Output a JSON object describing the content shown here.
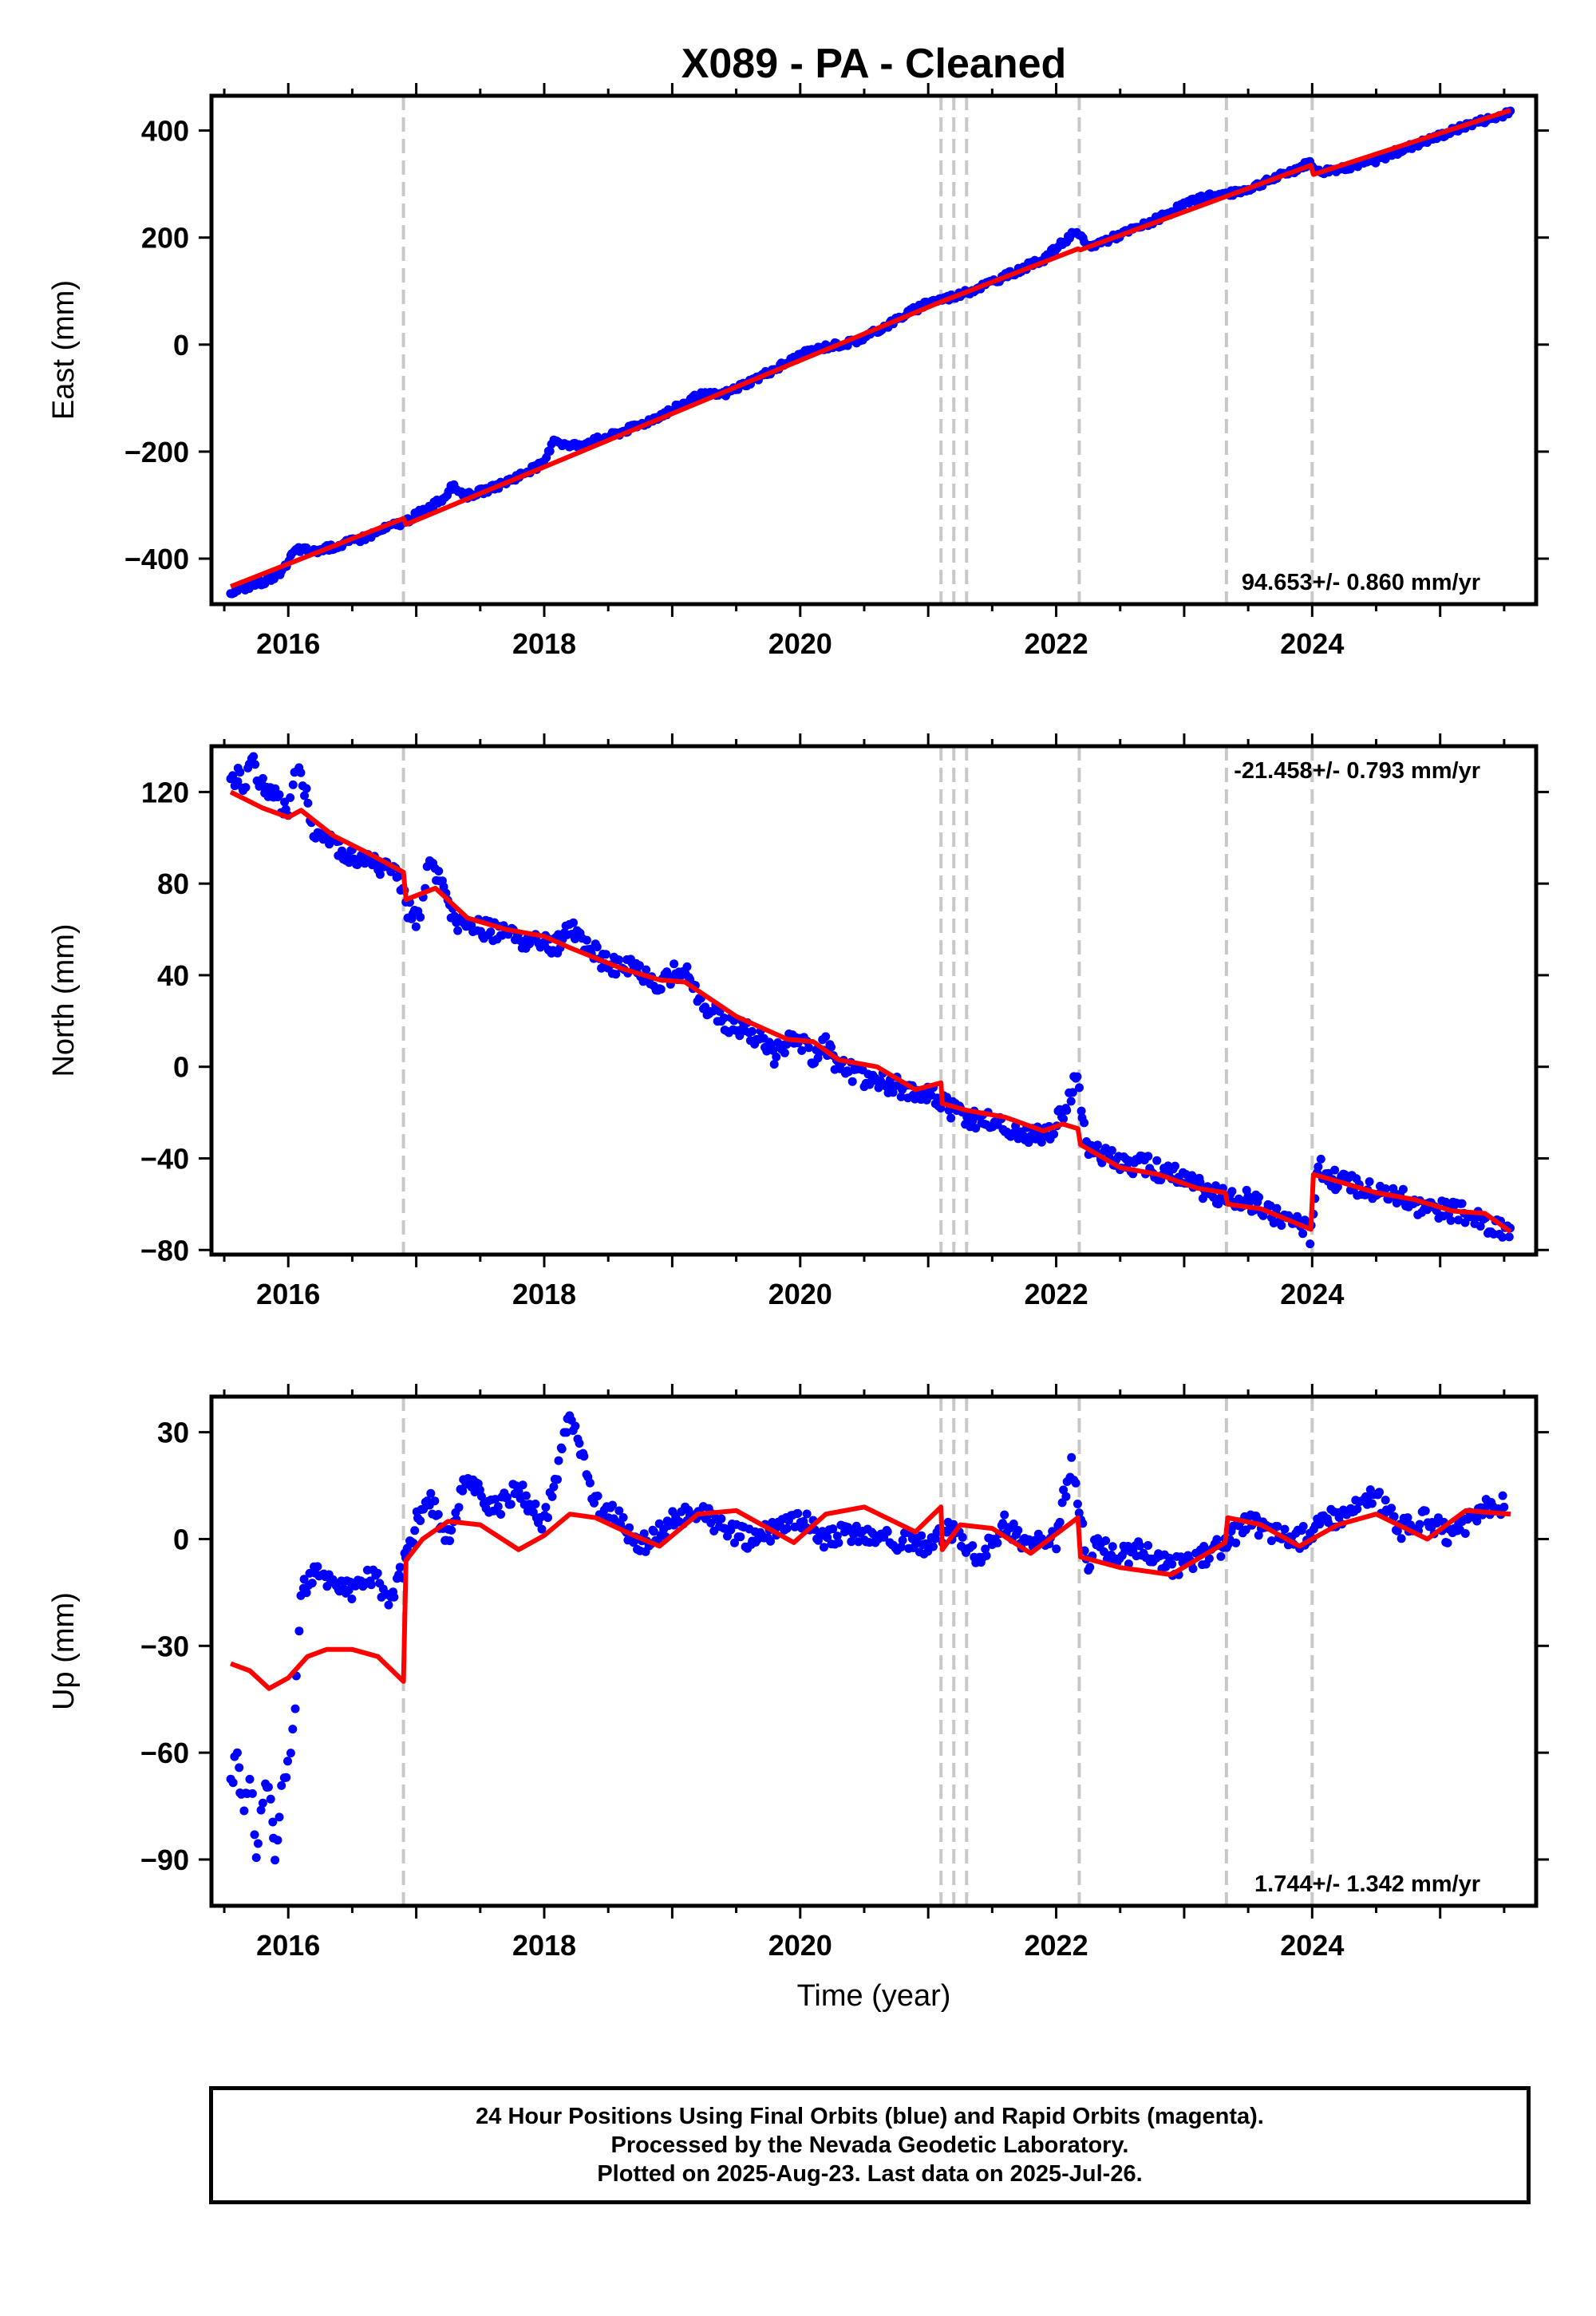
{
  "chart_data": {
    "type": "scatter",
    "title": "X089  - PA - Cleaned",
    "xlabel": "Time (year)",
    "xlim": [
      2015.4,
      2025.75
    ],
    "x_ticks": [
      2016,
      2018,
      2020,
      2022,
      2024
    ],
    "x_tick_labels": [
      "2016",
      "2018",
      "2020",
      "2022",
      "2024"
    ],
    "event_lines": [
      2016.9,
      2021.1,
      2021.2,
      2021.3,
      2022.18,
      2023.33,
      2024.0
    ],
    "event_line_color": "#c8c8c8",
    "point_color": "#0000ff",
    "model_color": "#ff0000",
    "panels": [
      {
        "id": "east",
        "ylabel": "East (mm)",
        "ylim": [
          -485,
          465
        ],
        "y_ticks": [
          -400,
          -200,
          0,
          200,
          400
        ],
        "y_tick_labels": [
          "−400",
          "−200",
          "0",
          "200",
          "400"
        ],
        "rate_label": "94.653+/- 0.860 mm/yr",
        "rate_position": "bottom-right",
        "series": [
          {
            "kind": "points",
            "x": [
              2015.55,
              2015.65,
              2015.75,
              2015.85,
              2015.95,
              2016.03,
              2016.08,
              2016.2,
              2016.4,
              2016.6,
              2016.8,
              2016.92,
              2017.0,
              2017.2,
              2017.28,
              2017.4,
              2017.6,
              2017.8,
              2018.0,
              2018.07,
              2018.18,
              2018.3,
              2018.5,
              2018.75,
              2019.0,
              2019.2,
              2019.4,
              2019.6,
              2019.8,
              2020.0,
              2020.2,
              2020.4,
              2020.5,
              2021.0,
              2021.15,
              2021.3,
              2021.5,
              2021.7,
              2021.9,
              2022.05,
              2022.15,
              2022.25,
              2022.5,
              2022.75,
              2023.0,
              2023.2,
              2023.4,
              2023.6,
              2023.8,
              2023.98,
              2024.05,
              2024.3,
              2024.5,
              2024.75,
              2025.0,
              2025.25,
              2025.45,
              2025.55
            ],
            "y": [
              -462,
              -455,
              -447,
              -440,
              -428,
              -392,
              -382,
              -387,
              -375,
              -360,
              -340,
              -330,
              -318,
              -290,
              -265,
              -282,
              -268,
              -245,
              -222,
              -175,
              -190,
              -185,
              -172,
              -150,
              -122,
              -95,
              -93,
              -70,
              -46,
              -20,
              -4,
              4,
              12,
              80,
              87,
              97,
              117,
              138,
              160,
              190,
              210,
              182,
              205,
              230,
              262,
              278,
              283,
              300,
              320,
              340,
              322,
              333,
              345,
              368,
              390,
              413,
              425,
              437
            ]
          },
          {
            "kind": "line",
            "x": [
              2015.55,
              2016.9,
              2016.92,
              2021.1,
              2022.17,
              2022.19,
              2023.99,
              2024.01,
              2025.55
            ],
            "y": [
              -452,
              -325,
              -336,
              80,
              179,
              177,
              335,
              318,
              438
            ]
          }
        ]
      },
      {
        "id": "north",
        "ylabel": "North (mm)",
        "ylim": [
          -82,
          140
        ],
        "y_ticks": [
          -80,
          -40,
          0,
          40,
          80,
          120
        ],
        "y_tick_labels": [
          "−80",
          "−40",
          "0",
          "40",
          "80",
          "120"
        ],
        "rate_label": "-21.458+/- 0.793 mm/yr",
        "rate_position": "top-right",
        "series": [
          {
            "kind": "points",
            "x": [
              2015.55,
              2015.6,
              2015.65,
              2015.7,
              2015.8,
              2015.9,
              2016.0,
              2016.05,
              2016.1,
              2016.2,
              2016.35,
              2016.5,
              2016.7,
              2016.85,
              2016.92,
              2017.0,
              2017.05,
              2017.1,
              2017.2,
              2017.3,
              2017.5,
              2017.7,
              2017.9,
              2018.1,
              2018.2,
              2018.3,
              2018.5,
              2018.7,
              2018.9,
              2019.0,
              2019.1,
              2019.2,
              2019.4,
              2019.6,
              2019.8,
              2019.95,
              2020.1,
              2020.2,
              2020.3,
              2020.45,
              2020.5,
              2021.0,
              2021.15,
              2021.3,
              2021.5,
              2021.7,
              2021.9,
              2022.0,
              2022.1,
              2022.15,
              2022.25,
              2022.5,
              2022.7,
              2022.9,
              2023.1,
              2023.3,
              2023.5,
              2023.7,
              2023.9,
              2023.98,
              2024.05,
              2024.2,
              2024.4,
              2024.6,
              2024.8,
              2025.0,
              2025.2,
              2025.4,
              2025.55
            ],
            "y": [
              125,
              128,
              122,
              135,
              122,
              118,
              112,
              128,
              130,
              103,
              98,
              92,
              88,
              84,
              70,
              65,
              72,
              90,
              78,
              63,
              60,
              58,
              54,
              53,
              62,
              55,
              44,
              43,
              36,
              41,
              44,
              29,
              20,
              16,
              5,
              14,
              4,
              10,
              -1,
              -3,
              -5,
              -12,
              -17,
              -23,
              -24,
              -30,
              -30,
              -25,
              -15,
              -3,
              -34,
              -43,
              -43,
              -47,
              -52,
              -57,
              -58,
              -65,
              -67,
              -73,
              -44,
              -50,
              -53,
              -55,
              -60,
              -62,
              -64,
              -70,
              -72
            ]
          },
          {
            "kind": "line",
            "x": [
              2015.55,
              2015.8,
              2016.0,
              2016.1,
              2016.35,
              2016.6,
              2016.9,
              2016.92,
              2017.15,
              2017.4,
              2017.7,
              2018.0,
              2018.2,
              2018.6,
              2018.9,
              2019.1,
              2019.5,
              2019.9,
              2020.1,
              2020.3,
              2020.6,
              2020.9,
              2021.1,
              2021.11,
              2021.3,
              2021.6,
              2021.9,
              2022.05,
              2022.17,
              2022.19,
              2022.5,
              2022.8,
              2023.1,
              2023.32,
              2023.34,
              2023.6,
              2023.99,
              2024.01,
              2024.2,
              2024.5,
              2024.8,
              2025.1,
              2025.35,
              2025.55
            ],
            "y": [
              120,
              113,
              109,
              112,
              101,
              94,
              85,
              73,
              78,
              65,
              60,
              57,
              52,
              43,
              38,
              37,
              22,
              12,
              11,
              3,
              0,
              -10,
              -7,
              -16,
              -19,
              -22,
              -28,
              -25,
              -27,
              -34,
              -44,
              -47,
              -53,
              -55,
              -60,
              -62,
              -71,
              -47,
              -50,
              -55,
              -58,
              -63,
              -64,
              -72
            ]
          }
        ]
      },
      {
        "id": "up",
        "ylabel": "Up (mm)",
        "ylim": [
          -103,
          40
        ],
        "y_ticks": [
          -90,
          -60,
          -30,
          0,
          30
        ],
        "y_tick_labels": [
          "−90",
          "−60",
          "−30",
          "0",
          "30"
        ],
        "rate_label": "1.744+/- 1.342 mm/yr",
        "rate_position": "bottom-right",
        "series": [
          {
            "kind": "points",
            "x": [
              2015.55,
              2015.6,
              2015.65,
              2015.7,
              2015.75,
              2015.8,
              2015.85,
              2015.9,
              2015.95,
              2016.0,
              2016.05,
              2016.1,
              2016.2,
              2016.35,
              2016.5,
              2016.65,
              2016.8,
              2016.92,
              2017.0,
              2017.1,
              2017.25,
              2017.4,
              2017.6,
              2017.8,
              2018.0,
              2018.2,
              2018.4,
              2018.6,
              2018.75,
              2019.0,
              2019.2,
              2019.4,
              2019.6,
              2019.8,
              2020.0,
              2020.2,
              2020.4,
              2020.5,
              2021.0,
              2021.2,
              2021.4,
              2021.6,
              2021.8,
              2022.0,
              2022.12,
              2022.25,
              2022.3,
              2022.5,
              2022.7,
              2022.9,
              2023.1,
              2023.3,
              2023.5,
              2023.7,
              2023.9,
              2024.1,
              2024.3,
              2024.5,
              2024.7,
              2024.9,
              2025.1,
              2025.3,
              2025.5
            ],
            "y": [
              -70,
              -60,
              -78,
              -66,
              -88,
              -72,
              -68,
              -92,
              -70,
              -62,
              -48,
              -15,
              -10,
              -12,
              -15,
              -10,
              -18,
              -5,
              5,
              12,
              0,
              18,
              8,
              14,
              4,
              35,
              10,
              5,
              -2,
              5,
              8,
              3,
              0,
              2,
              6,
              0,
              2,
              1,
              -2,
              3,
              -5,
              4,
              -2,
              0,
              22,
              -8,
              -2,
              -5,
              -3,
              -8,
              -6,
              -2,
              5,
              2,
              0,
              5,
              8,
              12,
              3,
              6,
              0,
              8,
              10
            ]
          },
          {
            "kind": "line",
            "x": [
              2015.55,
              2015.7,
              2015.85,
              2016.0,
              2016.15,
              2016.3,
              2016.5,
              2016.7,
              2016.9,
              2016.92,
              2017.05,
              2017.25,
              2017.5,
              2017.8,
              2018.0,
              2018.2,
              2018.4,
              2018.7,
              2018.9,
              2019.2,
              2019.5,
              2019.8,
              2019.95,
              2020.2,
              2020.5,
              2020.9,
              2021.1,
              2021.11,
              2021.25,
              2021.5,
              2021.8,
              2022.17,
              2022.19,
              2022.5,
              2022.9,
              2023.32,
              2023.34,
              2023.6,
              2023.9,
              2024.2,
              2024.5,
              2024.9,
              2025.2,
              2025.55
            ],
            "y": [
              -35,
              -37,
              -42,
              -39,
              -33,
              -31,
              -31,
              -33,
              -40,
              -6,
              0,
              5,
              4,
              -3,
              1,
              7,
              6,
              1,
              -2,
              7,
              8,
              2,
              -1,
              7,
              9,
              2,
              9,
              -3,
              4,
              3,
              -4,
              6,
              -5,
              -8,
              -10,
              -1,
              6,
              4,
              -2,
              4,
              7,
              0,
              8,
              7
            ]
          }
        ]
      }
    ]
  },
  "footer": {
    "line1": "24 Hour Positions Using Final Orbits (blue) and Rapid Orbits (magenta).",
    "line2": "Processed by the Nevada Geodetic Laboratory.",
    "line3": "Plotted on 2025-Aug-23. Last data on 2025-Jul-26."
  }
}
